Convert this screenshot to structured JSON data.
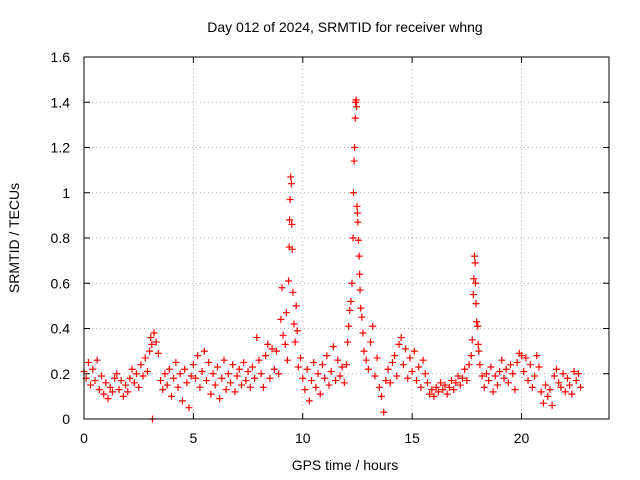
{
  "chart_data": {
    "type": "scatter",
    "title": "Day 012 of 2024, SRMTID for receiver whng",
    "xlabel": "GPS time / hours",
    "ylabel": "SRMTID / TECUs",
    "xlim": [
      0,
      24
    ],
    "ylim": [
      0,
      1.6
    ],
    "x_ticks": [
      0,
      5,
      10,
      15,
      20
    ],
    "x_tick_labels": [
      "0",
      "5",
      "10",
      "15",
      "20"
    ],
    "y_ticks": [
      0,
      0.2,
      0.4,
      0.6,
      0.8,
      1.0,
      1.2,
      1.4,
      1.6
    ],
    "y_tick_labels": [
      "0",
      "0.2",
      "0.4",
      "0.6",
      "0.8",
      "1",
      "1.2",
      "1.4",
      "1.6"
    ],
    "grid": true,
    "marker": "+",
    "marker_color": "#ff0000",
    "series": [
      {
        "name": "SRMTID",
        "points": [
          [
            0.0,
            0.21
          ],
          [
            0.1,
            0.18
          ],
          [
            0.2,
            0.25
          ],
          [
            0.3,
            0.15
          ],
          [
            0.4,
            0.22
          ],
          [
            0.5,
            0.17
          ],
          [
            0.6,
            0.26
          ],
          [
            0.7,
            0.13
          ],
          [
            0.8,
            0.19
          ],
          [
            0.9,
            0.11
          ],
          [
            1.0,
            0.16
          ],
          [
            1.1,
            0.09
          ],
          [
            1.2,
            0.14
          ],
          [
            1.3,
            0.12
          ],
          [
            1.4,
            0.18
          ],
          [
            1.5,
            0.2
          ],
          [
            1.6,
            0.13
          ],
          [
            1.7,
            0.17
          ],
          [
            1.8,
            0.1
          ],
          [
            1.9,
            0.15
          ],
          [
            2.0,
            0.12
          ],
          [
            2.1,
            0.18
          ],
          [
            2.2,
            0.22
          ],
          [
            2.3,
            0.16
          ],
          [
            2.4,
            0.2
          ],
          [
            2.5,
            0.14
          ],
          [
            2.6,
            0.24
          ],
          [
            2.7,
            0.19
          ],
          [
            2.8,
            0.27
          ],
          [
            2.9,
            0.21
          ],
          [
            3.0,
            0.3
          ],
          [
            3.05,
            0.36
          ],
          [
            3.1,
            0.33
          ],
          [
            3.13,
            0.0
          ],
          [
            3.2,
            0.38
          ],
          [
            3.3,
            0.34
          ],
          [
            3.4,
            0.29
          ],
          [
            3.5,
            0.17
          ],
          [
            3.6,
            0.13
          ],
          [
            3.7,
            0.2
          ],
          [
            3.8,
            0.15
          ],
          [
            3.9,
            0.22
          ],
          [
            4.0,
            0.1
          ],
          [
            4.1,
            0.18
          ],
          [
            4.2,
            0.25
          ],
          [
            4.3,
            0.14
          ],
          [
            4.4,
            0.2
          ],
          [
            4.5,
            0.08
          ],
          [
            4.6,
            0.22
          ],
          [
            4.7,
            0.16
          ],
          [
            4.8,
            0.05
          ],
          [
            4.9,
            0.19
          ],
          [
            5.0,
            0.24
          ],
          [
            5.1,
            0.18
          ],
          [
            5.2,
            0.28
          ],
          [
            5.3,
            0.14
          ],
          [
            5.4,
            0.21
          ],
          [
            5.5,
            0.3
          ],
          [
            5.6,
            0.17
          ],
          [
            5.7,
            0.25
          ],
          [
            5.8,
            0.11
          ],
          [
            5.9,
            0.2
          ],
          [
            6.0,
            0.15
          ],
          [
            6.1,
            0.23
          ],
          [
            6.2,
            0.09
          ],
          [
            6.3,
            0.18
          ],
          [
            6.4,
            0.26
          ],
          [
            6.5,
            0.13
          ],
          [
            6.6,
            0.2
          ],
          [
            6.7,
            0.16
          ],
          [
            6.8,
            0.24
          ],
          [
            6.9,
            0.12
          ],
          [
            7.0,
            0.19
          ],
          [
            7.1,
            0.22
          ],
          [
            7.2,
            0.15
          ],
          [
            7.3,
            0.25
          ],
          [
            7.4,
            0.17
          ],
          [
            7.5,
            0.21
          ],
          [
            7.6,
            0.14
          ],
          [
            7.7,
            0.23
          ],
          [
            7.8,
            0.18
          ],
          [
            7.9,
            0.36
          ],
          [
            8.0,
            0.26
          ],
          [
            8.1,
            0.2
          ],
          [
            8.2,
            0.14
          ],
          [
            8.3,
            0.28
          ],
          [
            8.4,
            0.33
          ],
          [
            8.5,
            0.18
          ],
          [
            8.6,
            0.31
          ],
          [
            8.7,
            0.22
          ],
          [
            8.8,
            0.3
          ],
          [
            8.9,
            0.2
          ],
          [
            9.0,
            0.44
          ],
          [
            9.05,
            0.58
          ],
          [
            9.1,
            0.37
          ],
          [
            9.2,
            0.33
          ],
          [
            9.25,
            0.47
          ],
          [
            9.3,
            0.26
          ],
          [
            9.35,
            0.61
          ],
          [
            9.38,
            0.76
          ],
          [
            9.4,
            0.88
          ],
          [
            9.42,
            0.97
          ],
          [
            9.45,
            1.07
          ],
          [
            9.48,
            1.04
          ],
          [
            9.5,
            0.86
          ],
          [
            9.52,
            0.75
          ],
          [
            9.55,
            0.56
          ],
          [
            9.6,
            0.42
          ],
          [
            9.65,
            0.34
          ],
          [
            9.7,
            0.5
          ],
          [
            9.75,
            0.39
          ],
          [
            9.8,
            0.23
          ],
          [
            9.9,
            0.27
          ],
          [
            10.0,
            0.18
          ],
          [
            10.1,
            0.13
          ],
          [
            10.2,
            0.22
          ],
          [
            10.3,
            0.08
          ],
          [
            10.4,
            0.17
          ],
          [
            10.5,
            0.25
          ],
          [
            10.6,
            0.14
          ],
          [
            10.7,
            0.2
          ],
          [
            10.8,
            0.11
          ],
          [
            10.9,
            0.24
          ],
          [
            11.0,
            0.18
          ],
          [
            11.1,
            0.28
          ],
          [
            11.2,
            0.15
          ],
          [
            11.3,
            0.21
          ],
          [
            11.4,
            0.32
          ],
          [
            11.5,
            0.17
          ],
          [
            11.6,
            0.26
          ],
          [
            11.7,
            0.19
          ],
          [
            11.8,
            0.23
          ],
          [
            11.9,
            0.16
          ],
          [
            12.0,
            0.24
          ],
          [
            12.05,
            0.34
          ],
          [
            12.1,
            0.41
          ],
          [
            12.15,
            0.48
          ],
          [
            12.2,
            0.52
          ],
          [
            12.25,
            0.6
          ],
          [
            12.3,
            0.8
          ],
          [
            12.32,
            1.0
          ],
          [
            12.35,
            1.14
          ],
          [
            12.37,
            1.2
          ],
          [
            12.4,
            1.33
          ],
          [
            12.42,
            1.4
          ],
          [
            12.44,
            1.41
          ],
          [
            12.46,
            1.38
          ],
          [
            12.48,
            0.94
          ],
          [
            12.5,
            0.91
          ],
          [
            12.52,
            0.87
          ],
          [
            12.55,
            0.79
          ],
          [
            12.58,
            0.72
          ],
          [
            12.6,
            0.64
          ],
          [
            12.62,
            0.57
          ],
          [
            12.65,
            0.49
          ],
          [
            12.7,
            0.45
          ],
          [
            12.75,
            0.38
          ],
          [
            12.8,
            0.3
          ],
          [
            12.9,
            0.26
          ],
          [
            13.0,
            0.22
          ],
          [
            13.1,
            0.34
          ],
          [
            13.2,
            0.41
          ],
          [
            13.3,
            0.19
          ],
          [
            13.4,
            0.27
          ],
          [
            13.5,
            0.14
          ],
          [
            13.6,
            0.1
          ],
          [
            13.7,
            0.03
          ],
          [
            13.8,
            0.17
          ],
          [
            13.9,
            0.22
          ],
          [
            14.0,
            0.16
          ],
          [
            14.1,
            0.25
          ],
          [
            14.2,
            0.28
          ],
          [
            14.3,
            0.19
          ],
          [
            14.4,
            0.33
          ],
          [
            14.5,
            0.36
          ],
          [
            14.6,
            0.24
          ],
          [
            14.7,
            0.31
          ],
          [
            14.8,
            0.18
          ],
          [
            14.9,
            0.27
          ],
          [
            15.0,
            0.21
          ],
          [
            15.1,
            0.3
          ],
          [
            15.2,
            0.17
          ],
          [
            15.3,
            0.23
          ],
          [
            15.4,
            0.14
          ],
          [
            15.5,
            0.26
          ],
          [
            15.6,
            0.2
          ],
          [
            15.7,
            0.16
          ],
          [
            15.8,
            0.11
          ],
          [
            15.9,
            0.13
          ],
          [
            16.0,
            0.1
          ],
          [
            16.1,
            0.14
          ],
          [
            16.2,
            0.12
          ],
          [
            16.3,
            0.16
          ],
          [
            16.4,
            0.13
          ],
          [
            16.5,
            0.15
          ],
          [
            16.6,
            0.11
          ],
          [
            16.7,
            0.14
          ],
          [
            16.8,
            0.17
          ],
          [
            16.9,
            0.13
          ],
          [
            17.0,
            0.16
          ],
          [
            17.1,
            0.19
          ],
          [
            17.2,
            0.15
          ],
          [
            17.3,
            0.18
          ],
          [
            17.4,
            0.22
          ],
          [
            17.5,
            0.17
          ],
          [
            17.6,
            0.24
          ],
          [
            17.7,
            0.28
          ],
          [
            17.75,
            0.35
          ],
          [
            17.8,
            0.55
          ],
          [
            17.82,
            0.62
          ],
          [
            17.85,
            0.72
          ],
          [
            17.88,
            0.69
          ],
          [
            17.9,
            0.6
          ],
          [
            17.92,
            0.51
          ],
          [
            17.95,
            0.43
          ],
          [
            18.0,
            0.41
          ],
          [
            18.02,
            0.33
          ],
          [
            18.05,
            0.3
          ],
          [
            18.1,
            0.24
          ],
          [
            18.2,
            0.19
          ],
          [
            18.3,
            0.14
          ],
          [
            18.4,
            0.2
          ],
          [
            18.5,
            0.17
          ],
          [
            18.6,
            0.23
          ],
          [
            18.7,
            0.12
          ],
          [
            18.8,
            0.19
          ],
          [
            18.9,
            0.15
          ],
          [
            19.0,
            0.21
          ],
          [
            19.1,
            0.26
          ],
          [
            19.2,
            0.18
          ],
          [
            19.3,
            0.22
          ],
          [
            19.4,
            0.16
          ],
          [
            19.5,
            0.24
          ],
          [
            19.6,
            0.2
          ],
          [
            19.7,
            0.13
          ],
          [
            19.8,
            0.25
          ],
          [
            19.9,
            0.29
          ],
          [
            20.0,
            0.28
          ],
          [
            20.1,
            0.21
          ],
          [
            20.2,
            0.27
          ],
          [
            20.3,
            0.17
          ],
          [
            20.4,
            0.24
          ],
          [
            20.5,
            0.14
          ],
          [
            20.6,
            0.19
          ],
          [
            20.7,
            0.28
          ],
          [
            20.8,
            0.23
          ],
          [
            20.9,
            0.12
          ],
          [
            21.0,
            0.07
          ],
          [
            21.1,
            0.15
          ],
          [
            21.2,
            0.1
          ],
          [
            21.3,
            0.13
          ],
          [
            21.4,
            0.06
          ],
          [
            21.5,
            0.19
          ],
          [
            21.6,
            0.22
          ],
          [
            21.7,
            0.16
          ],
          [
            21.8,
            0.14
          ],
          [
            21.9,
            0.2
          ],
          [
            22.0,
            0.12
          ],
          [
            22.1,
            0.18
          ],
          [
            22.2,
            0.15
          ],
          [
            22.3,
            0.11
          ],
          [
            22.4,
            0.21
          ],
          [
            22.5,
            0.17
          ],
          [
            22.6,
            0.2
          ],
          [
            22.7,
            0.14
          ]
        ]
      }
    ]
  }
}
